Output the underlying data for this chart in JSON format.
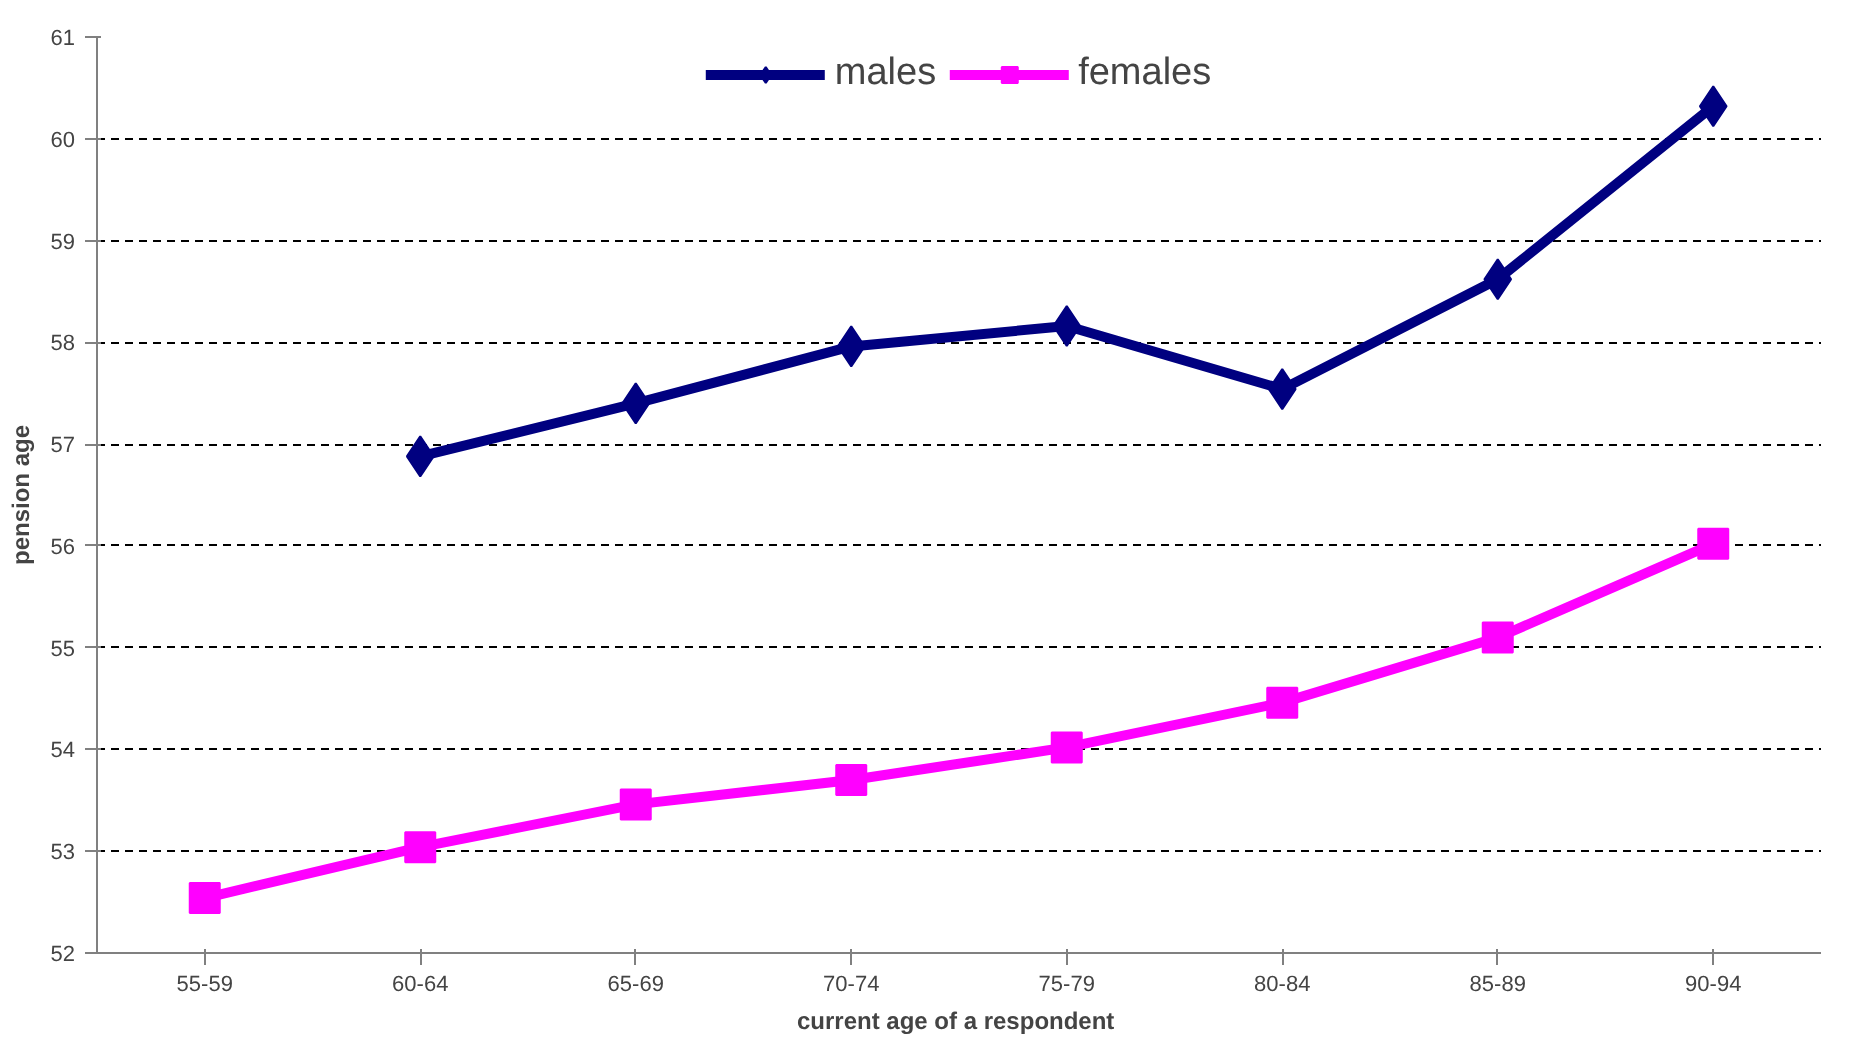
{
  "chart_data": {
    "type": "line",
    "xlabel": "current age of a  respondent",
    "ylabel": "pension age",
    "categories": [
      "55-59",
      "60-64",
      "65-69",
      "70-74",
      "75-79",
      "80-84",
      "85-89",
      "90-94"
    ],
    "series": [
      {
        "name": "males",
        "color": "#000080",
        "marker": "diamond",
        "values": [
          null,
          56.88,
          57.4,
          57.96,
          58.16,
          57.54,
          58.62,
          60.32
        ]
      },
      {
        "name": "females",
        "color": "#ff00ff",
        "marker": "square",
        "values": [
          52.54,
          53.04,
          53.46,
          53.7,
          54.02,
          54.46,
          55.1,
          56.02
        ]
      }
    ],
    "ylim": [
      52,
      61
    ],
    "yticks": [
      52,
      53,
      54,
      55,
      56,
      57,
      58,
      59,
      60,
      61
    ],
    "grid": "y",
    "legend": "top",
    "line_style": "solid"
  }
}
